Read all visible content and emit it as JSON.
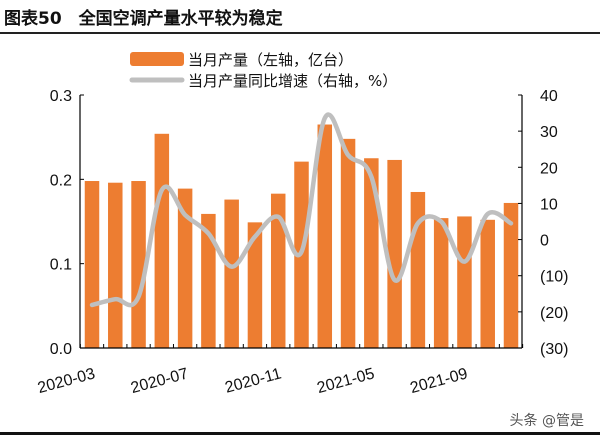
{
  "title": "图表50　全国空调产量水平较为稳定",
  "watermark": "头条 @管是",
  "chart_data": {
    "type": "bar+line",
    "title": "全国空调产量水平较为稳定",
    "categories": [
      "2020-03",
      "2020-04",
      "2020-05",
      "2020-06",
      "2020-07",
      "2020-08",
      "2020-09",
      "2020-10",
      "2020-11",
      "2020-12",
      "2021-03",
      "2021-04",
      "2021-05",
      "2021-06",
      "2021-07",
      "2021-08",
      "2021-09",
      "2021-10",
      "2021-11"
    ],
    "x_tick_labels": [
      "2020-03",
      "2020-07",
      "2020-11",
      "2021-05",
      "2021-09"
    ],
    "series": [
      {
        "name": "当月产量（左轴，亿台）",
        "type": "bar",
        "axis": "left",
        "color": "#ED7D31",
        "values": [
          0.198,
          0.196,
          0.198,
          0.254,
          0.189,
          0.159,
          0.176,
          0.149,
          0.183,
          0.221,
          0.265,
          0.248,
          0.225,
          0.223,
          0.185,
          0.154,
          0.156,
          0.152,
          0.172
        ]
      },
      {
        "name": "当月产量同比增速（右轴，%）",
        "type": "line",
        "axis": "right",
        "color": "#BFBFBF",
        "values": [
          -18.1,
          -16.5,
          -15.8,
          13.7,
          6.8,
          1.7,
          -7.5,
          0.8,
          6.3,
          -3.4,
          33.6,
          23.4,
          17.4,
          -11.2,
          4.5,
          5.0,
          -6.1,
          7.1,
          4.5
        ]
      }
    ],
    "left_axis": {
      "ylim": [
        0,
        0.3
      ],
      "ticks": [
        "0.0",
        "0.1",
        "0.2",
        "0.3"
      ]
    },
    "right_axis": {
      "ylim": [
        -30,
        40
      ],
      "ticks": [
        "40",
        "30",
        "20",
        "10",
        "0",
        "(10)",
        "(20)",
        "(30)"
      ],
      "negative_color": "#FF0000"
    },
    "legend": "top",
    "grid": false
  }
}
